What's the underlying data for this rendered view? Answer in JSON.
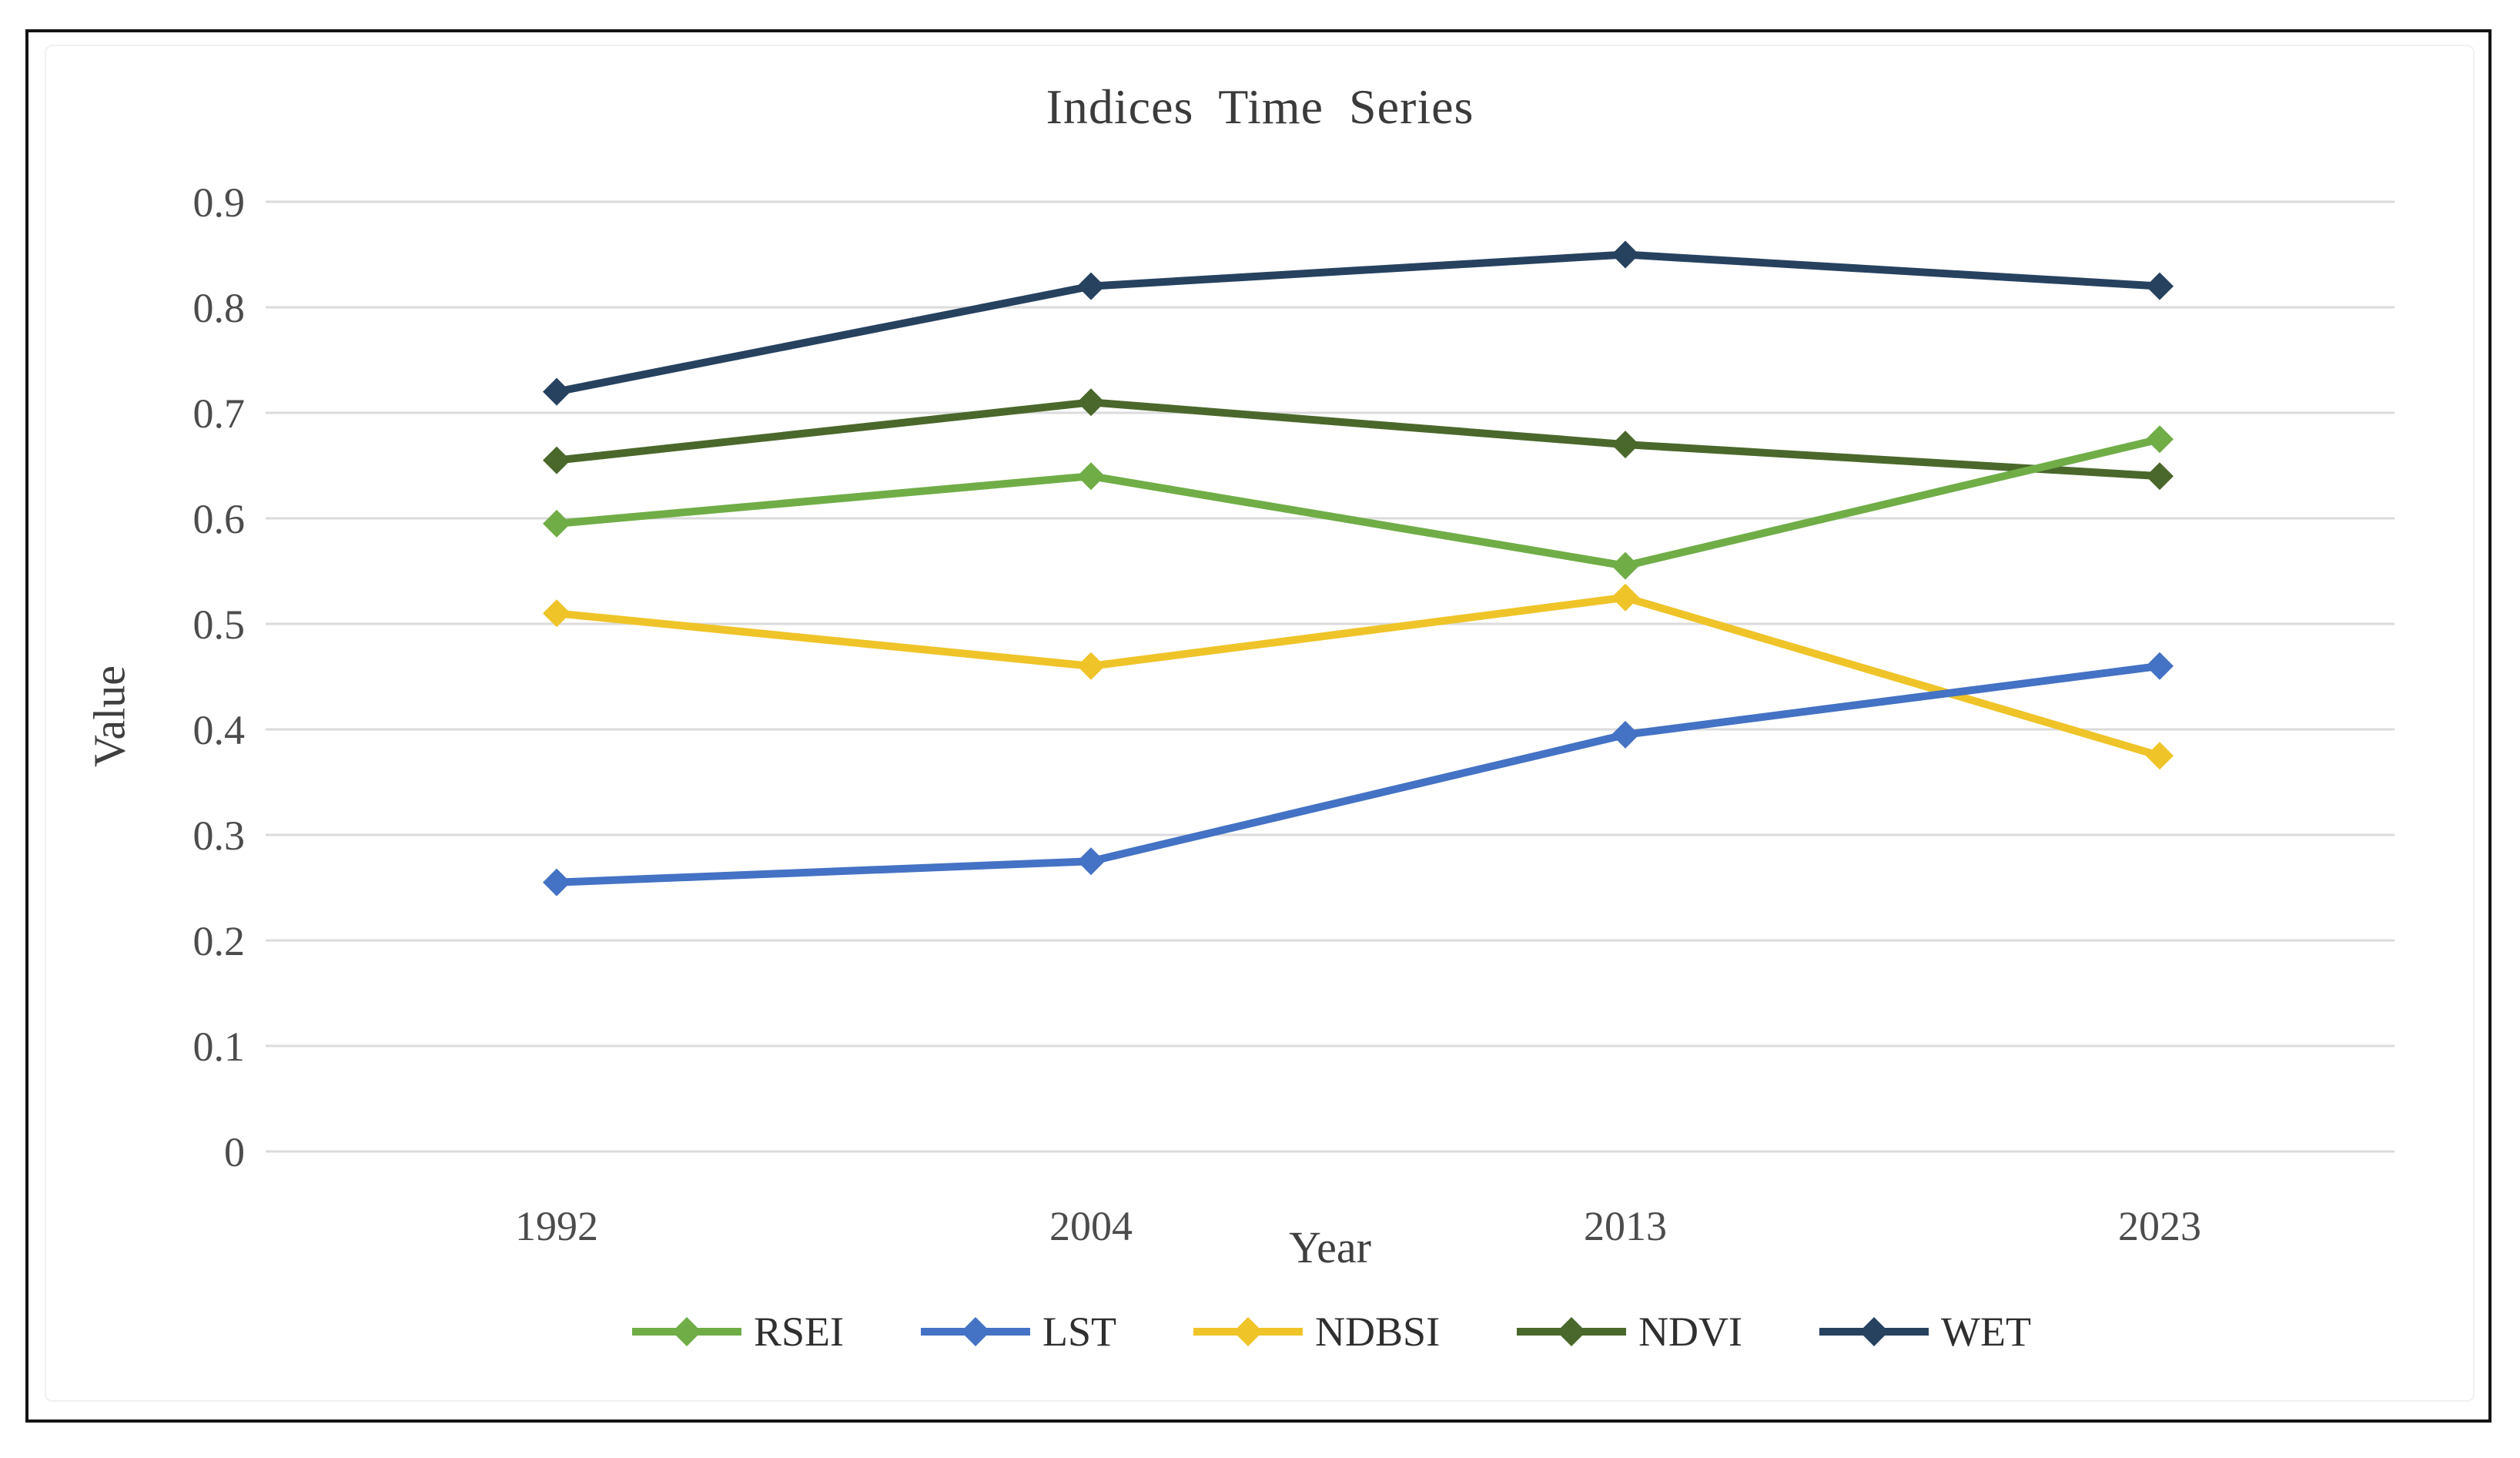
{
  "frame": {
    "border_color": "#141414",
    "background": "#ffffff"
  },
  "chart_data": {
    "type": "line",
    "title": "Indices Time Series",
    "xlabel": "Year",
    "ylabel": "Value",
    "categories": [
      "1992",
      "2004",
      "2013",
      "2023"
    ],
    "yticks": [
      "0",
      "0.1",
      "0.2",
      "0.3",
      "0.4",
      "0.5",
      "0.6",
      "0.7",
      "0.8",
      "0.9"
    ],
    "ylim": [
      0,
      0.9
    ],
    "grid": "horizontal",
    "gridline_color": "#DBDBDB",
    "tick_color": "#4c4c4c",
    "legend_position": "bottom",
    "marker_shape": "diamond",
    "series": [
      {
        "name": "RSEI",
        "color": "#70AD47",
        "values": [
          0.595,
          0.64,
          0.555,
          0.675
        ]
      },
      {
        "name": "LST",
        "color": "#4472C4",
        "values": [
          0.255,
          0.275,
          0.395,
          0.46
        ]
      },
      {
        "name": "NDBSI",
        "color": "#EFC428",
        "values": [
          0.51,
          0.46,
          0.525,
          0.375
        ]
      },
      {
        "name": "NDVI",
        "color": "#4A682B",
        "values": [
          0.655,
          0.71,
          0.67,
          0.64
        ]
      },
      {
        "name": "WET",
        "color": "#26425F",
        "values": [
          0.72,
          0.82,
          0.85,
          0.82
        ]
      }
    ]
  }
}
